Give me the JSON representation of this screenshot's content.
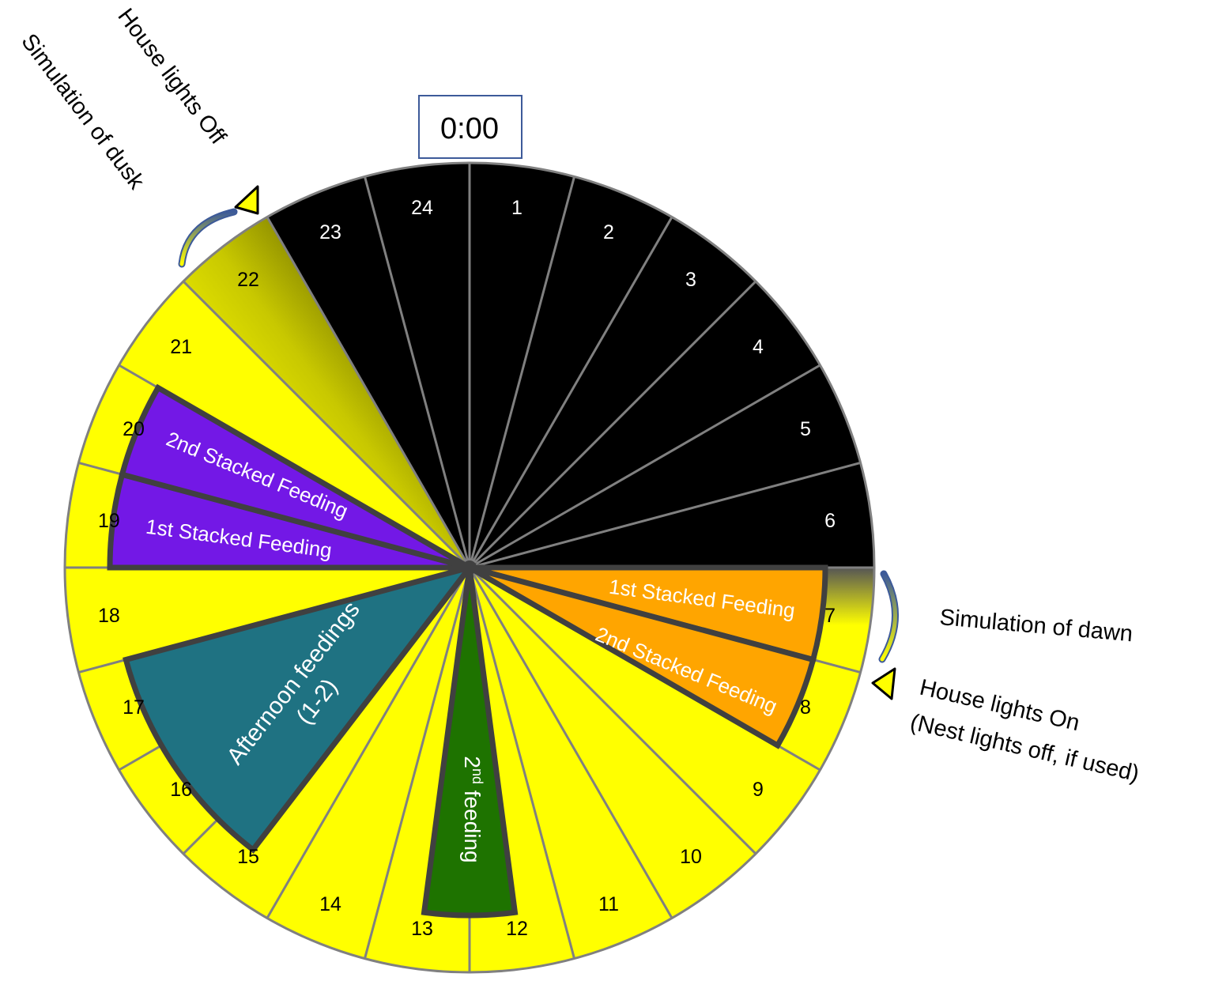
{
  "time_box": {
    "text": "0:00"
  },
  "hours": [
    {
      "label": "1",
      "fill": "black"
    },
    {
      "label": "2",
      "fill": "black"
    },
    {
      "label": "3",
      "fill": "black"
    },
    {
      "label": "4",
      "fill": "black"
    },
    {
      "label": "5",
      "fill": "black"
    },
    {
      "label": "6",
      "fill": "black"
    },
    {
      "label": "7",
      "fill": "dawn"
    },
    {
      "label": "8",
      "fill": "yellow"
    },
    {
      "label": "9",
      "fill": "yellow"
    },
    {
      "label": "10",
      "fill": "yellow"
    },
    {
      "label": "11",
      "fill": "yellow"
    },
    {
      "label": "12",
      "fill": "yellow"
    },
    {
      "label": "13",
      "fill": "yellow"
    },
    {
      "label": "14",
      "fill": "yellow"
    },
    {
      "label": "15",
      "fill": "yellow"
    },
    {
      "label": "16",
      "fill": "yellow"
    },
    {
      "label": "17",
      "fill": "yellow"
    },
    {
      "label": "18",
      "fill": "yellow"
    },
    {
      "label": "19",
      "fill": "yellow"
    },
    {
      "label": "20",
      "fill": "yellow"
    },
    {
      "label": "21",
      "fill": "yellow"
    },
    {
      "label": "22",
      "fill": "dusk"
    },
    {
      "label": "23",
      "fill": "black"
    },
    {
      "label": "24",
      "fill": "black"
    }
  ],
  "feedings": {
    "morning_1": {
      "label": "1st Stacked Feeding",
      "hour": 7,
      "color": "#FFA500"
    },
    "morning_2": {
      "label": "2nd Stacked Feeding",
      "hour": 8,
      "color": "#FFA500"
    },
    "midday": {
      "label_base": "2",
      "label_sup": "nd",
      "label_rest": " feeding",
      "hour": 12.5,
      "color": "#1E7300"
    },
    "afternoon": {
      "line1": "Afternoon feedings",
      "line2": "(1-2)",
      "hour": 16,
      "color": "#1F7282"
    },
    "evening_1": {
      "label": "1st Stacked Feeding",
      "hour": 19,
      "color": "#7318E6"
    },
    "evening_2": {
      "label": "2nd Stacked Feeding",
      "hour": 20,
      "color": "#7318E6"
    }
  },
  "colors": {
    "night": "#000000",
    "day": "#FFFF00",
    "divider": "#808080",
    "feeding_outline": "#404040",
    "arrow_fill": "#FFFF00",
    "arc_blue": "#3D5A99"
  },
  "annotations": {
    "dawn": "Simulation of dawn",
    "lights_on": "House lights On",
    "nest_off": "(Nest lights off, if used)",
    "lights_off": "House lights Off",
    "dusk": "Simulation of dusk"
  }
}
